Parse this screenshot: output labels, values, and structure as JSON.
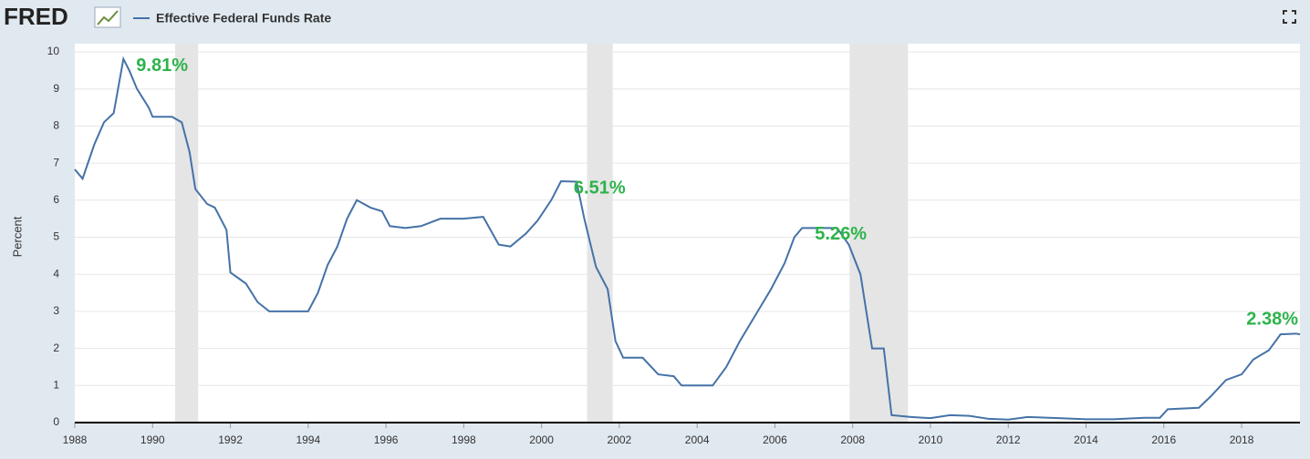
{
  "chart_data": {
    "type": "line",
    "brand": "FRED",
    "ylabel": "Percent",
    "x": [
      1988.0,
      1988.2,
      1988.5,
      1988.75,
      1989.0,
      1989.25,
      1989.4,
      1989.6,
      1989.9,
      1990.0,
      1990.5,
      1990.75,
      1990.95,
      1991.1,
      1991.4,
      1991.6,
      1991.9,
      1992.0,
      1992.4,
      1992.7,
      1993.0,
      1993.5,
      1994.0,
      1994.25,
      1994.5,
      1994.75,
      1995.0,
      1995.25,
      1995.6,
      1995.9,
      1996.1,
      1996.5,
      1996.9,
      1997.4,
      1998.0,
      1998.5,
      1998.9,
      1999.2,
      1999.6,
      1999.9,
      2000.25,
      2000.5,
      2000.9,
      2001.1,
      2001.4,
      2001.7,
      2001.9,
      2002.1,
      2002.6,
      2003.0,
      2003.4,
      2003.6,
      2004.4,
      2004.75,
      2005.1,
      2005.5,
      2005.9,
      2006.25,
      2006.5,
      2006.7,
      2007.6,
      2007.9,
      2008.2,
      2008.5,
      2008.8,
      2009.0,
      2009.5,
      2010.0,
      2010.5,
      2011.0,
      2011.5,
      2012.0,
      2012.5,
      2013.3,
      2014.0,
      2014.7,
      2015.5,
      2015.9,
      2016.1,
      2016.9,
      2017.2,
      2017.6,
      2018.0,
      2018.3,
      2018.7,
      2019.0,
      2019.4,
      2019.5
    ],
    "series": [
      {
        "name": "Effective Federal Funds Rate",
        "color": "#4572a7",
        "values": [
          6.83,
          6.58,
          7.5,
          8.1,
          8.35,
          9.81,
          9.5,
          9.0,
          8.5,
          8.25,
          8.25,
          8.1,
          7.3,
          6.3,
          5.9,
          5.8,
          5.2,
          4.05,
          3.75,
          3.25,
          3.0,
          3.0,
          3.0,
          3.5,
          4.25,
          4.75,
          5.5,
          6.0,
          5.8,
          5.7,
          5.3,
          5.25,
          5.3,
          5.5,
          5.5,
          5.55,
          4.8,
          4.75,
          5.1,
          5.45,
          6.0,
          6.51,
          6.5,
          5.5,
          4.2,
          3.6,
          2.2,
          1.75,
          1.75,
          1.3,
          1.25,
          1.0,
          1.0,
          1.5,
          2.2,
          2.9,
          3.6,
          4.3,
          5.0,
          5.25,
          5.25,
          4.8,
          4.0,
          2.0,
          2.0,
          0.2,
          0.15,
          0.12,
          0.2,
          0.18,
          0.1,
          0.08,
          0.15,
          0.12,
          0.09,
          0.09,
          0.13,
          0.13,
          0.36,
          0.4,
          0.7,
          1.15,
          1.3,
          1.7,
          1.95,
          2.38,
          2.4,
          2.38
        ]
      }
    ],
    "recessions": [
      [
        1990.58,
        1991.17
      ],
      [
        2001.17,
        2001.83
      ],
      [
        2007.92,
        2009.42
      ]
    ],
    "annotations": [
      {
        "x": 1989.25,
        "y": 9.81,
        "label": "9.81%"
      },
      {
        "x": 2000.5,
        "y": 6.51,
        "label": "6.51%"
      },
      {
        "x": 2006.7,
        "y": 5.26,
        "label": "5.26%"
      },
      {
        "x": 2019.0,
        "y": 2.38,
        "label": "2.38%"
      }
    ],
    "annotation_color": "#2db34a",
    "xlim": [
      1988,
      2019.5
    ],
    "ylim": [
      0,
      10
    ],
    "xticks": [
      1988,
      1990,
      1992,
      1994,
      1996,
      1998,
      2000,
      2002,
      2004,
      2006,
      2008,
      2010,
      2012,
      2014,
      2016,
      2018
    ],
    "yticks": [
      0,
      1,
      2,
      3,
      4,
      5,
      6,
      7,
      8,
      9,
      10
    ],
    "grid": true
  }
}
